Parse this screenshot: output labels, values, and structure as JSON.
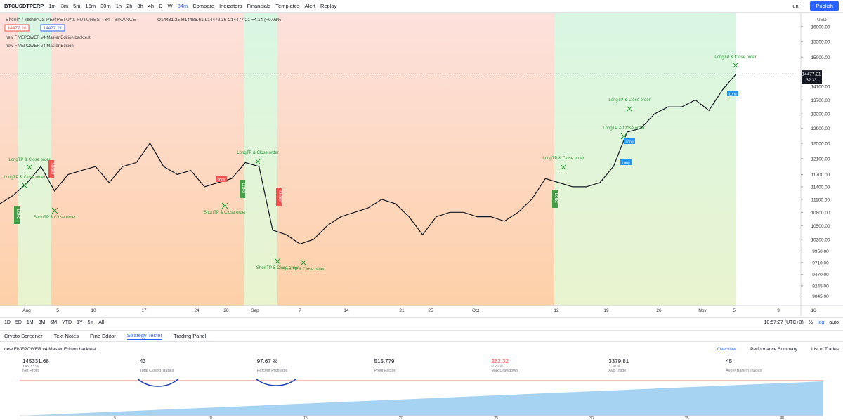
{
  "toolbar": {
    "symbol": "BTCUSDTPERP",
    "intervals": [
      "1m",
      "3m",
      "5m",
      "15m",
      "30m",
      "1h",
      "2h",
      "3h",
      "4h",
      "D",
      "W",
      "34m"
    ],
    "items": [
      "Compare",
      "Indicators",
      "Financials",
      "Templates",
      "Alert",
      "Replay"
    ],
    "user": "uni",
    "publish": "Publish"
  },
  "chart": {
    "title": "Bitcoin / TetherUS PERPETUAL FUTURES · 34 · BINANCE",
    "ohlc": "O14481.35 H14486.61 L14472.36 C14477.21 −4.14 (−0.03%)",
    "price_box_left": "14477.20",
    "price_box_right": "14477.21",
    "indicators": [
      "new FIVEPOWER v4 Master Edition backtest",
      "new FIVEPOWER v4 Master Edition"
    ],
    "currency": "USDT",
    "ylim": [
      8880,
      16430
    ],
    "log_scale": true,
    "yticks": [
      {
        "value": 16000,
        "label": "16000.00"
      },
      {
        "value": 15500,
        "label": "15500.00"
      },
      {
        "value": 15000,
        "label": "15000.00"
      },
      {
        "value": 14100,
        "label": "14100.00"
      },
      {
        "value": 13700,
        "label": "13700.00"
      },
      {
        "value": 13300,
        "label": "13300.00"
      },
      {
        "value": 12900,
        "label": "12900.00"
      },
      {
        "value": 12500,
        "label": "12500.00"
      },
      {
        "value": 12100,
        "label": "12100.00"
      },
      {
        "value": 11700,
        "label": "11700.00"
      },
      {
        "value": 11400,
        "label": "11400.00"
      },
      {
        "value": 11100,
        "label": "11100.00"
      },
      {
        "value": 10800,
        "label": "10800.00"
      },
      {
        "value": 10500,
        "label": "10500.00"
      },
      {
        "value": 10200,
        "label": "10200.00"
      },
      {
        "value": 9950,
        "label": "9950.00"
      },
      {
        "value": 9710,
        "label": "9710.00"
      },
      {
        "value": 9470,
        "label": "9470.00"
      },
      {
        "value": 9245,
        "label": "9245.00"
      },
      {
        "value": 9045,
        "label": "9045.00"
      }
    ],
    "last_price": {
      "value": 14477.21,
      "label": "14477.21"
    },
    "countdown": "32:33",
    "time_labels": [
      "Aug",
      "5",
      "10",
      "17",
      "24",
      "28",
      "Sep",
      "7",
      "14",
      "21",
      "25",
      "Oct",
      "12",
      "19",
      "26",
      "Nov",
      "5",
      "9",
      "16"
    ],
    "price": [
      11000,
      11200,
      11500,
      11900,
      11300,
      11700,
      11800,
      11900,
      11500,
      11900,
      12000,
      12500,
      11900,
      11700,
      11800,
      11400,
      11500,
      11600,
      12000,
      11900,
      10400,
      10300,
      10100,
      10200,
      10500,
      10700,
      10800,
      10900,
      11100,
      11000,
      10700,
      10300,
      10700,
      10800,
      10800,
      10700,
      10700,
      10600,
      10800,
      11100,
      11600,
      11500,
      11400,
      11400,
      11500,
      11900,
      12800,
      12900,
      13300,
      13500,
      13500,
      13700,
      13400,
      14000,
      14477.21
    ],
    "annotations": [
      "LongTP & Close order",
      "LongTP & Close order",
      "ShortTP & Close order",
      "LongTP & Close order",
      "ShortTP & Close order",
      "ShortTP & Close order",
      "ShortTP & Close order",
      "LongTP & Close order",
      "LongTP & Close order",
      "LongTP & Close order",
      "LongTP & Close order"
    ],
    "signals": [
      "short",
      "Long",
      "Long",
      "Long",
      "LONG",
      "LONG",
      "LONG",
      "SHORT",
      "SHORT"
    ]
  },
  "bottom_bar": {
    "ranges": [
      "1D",
      "5D",
      "1M",
      "3M",
      "6M",
      "YTD",
      "1Y",
      "5Y",
      "All"
    ],
    "clock": "10:57:27 (UTC+3)",
    "options": [
      "%",
      "log",
      "auto"
    ]
  },
  "tabs": [
    "Crypto Screener",
    "Text Notes",
    "Pine Editor",
    "Strategy Tester",
    "Trading Panel"
  ],
  "strategy": {
    "title": "new FIVEPOWER v4 Master Edition backtest",
    "views": [
      "Overview",
      "Performance Summary",
      "List of Trades"
    ],
    "stats": [
      {
        "value": "145331.68",
        "sub": "145.33 %",
        "label": "Net Profit"
      },
      {
        "value": "43",
        "label": "Total Closed Trades"
      },
      {
        "value": "97.67 %",
        "label": "Percent Profitable"
      },
      {
        "value": "515.779",
        "label": "Profit Factor"
      },
      {
        "value": "282.32",
        "sub": "0.26 %",
        "label": "Max Drawdown"
      },
      {
        "value": "3379.81",
        "sub": "3.38 %",
        "label": "Avg Trade"
      },
      {
        "value": "45",
        "label": "Avg # Bars in Trades"
      }
    ],
    "xlim": [
      0,
      43.2
    ],
    "xticks": [
      5,
      10,
      15,
      20,
      25,
      30,
      35,
      40
    ]
  }
}
